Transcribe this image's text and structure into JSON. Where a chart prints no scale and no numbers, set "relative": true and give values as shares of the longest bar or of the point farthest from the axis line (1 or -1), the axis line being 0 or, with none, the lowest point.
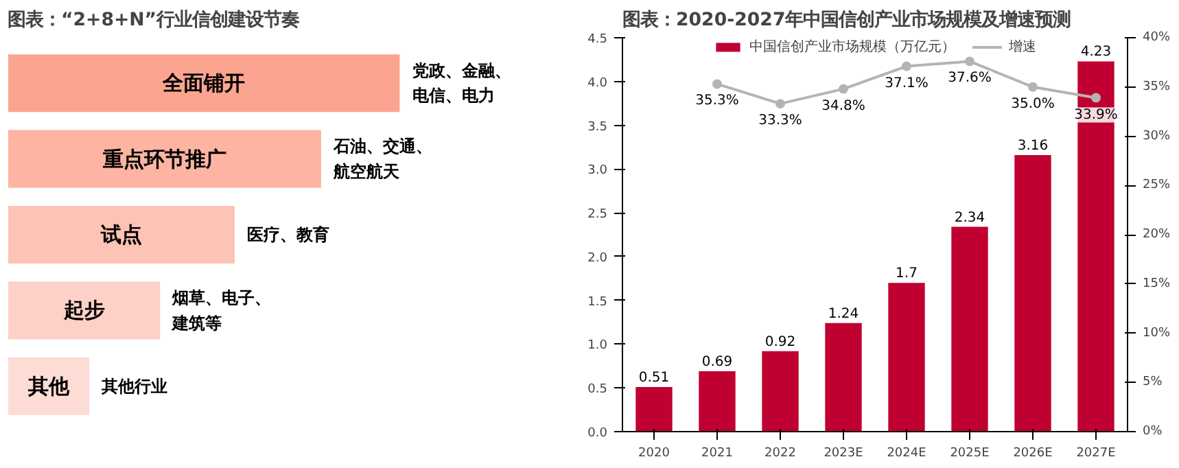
{
  "chart_data": [
    {
      "type": "bar",
      "orientation": "horizontal",
      "relative": true,
      "title": "图表：“2+8+N”行业信创建设节奏",
      "categories": [
        "全面铺开",
        "重点环节推广",
        "试点",
        "起步",
        "其他"
      ],
      "values": [
        1,
        0.8,
        0.58,
        0.39,
        0.21
      ],
      "colors": [
        "#fba590",
        "#fdb4a2",
        "#fdc3b5",
        "#fdd1c7",
        "#fddcd5"
      ],
      "annotations": [
        {
          "text": "党政、金融、电信、电力",
          "x": 1,
          "y": "全面铺开"
        },
        {
          "text": "石油、交通、航空航天",
          "x": 0.8,
          "y": "重点环节推广"
        },
        {
          "text": "医疗、教育",
          "x": 0.58,
          "y": "试点"
        },
        {
          "text": "烟草、电子、建筑等",
          "x": 0.39,
          "y": "起步"
        },
        {
          "text": "其他行业",
          "x": 0.21,
          "y": "其他"
        }
      ],
      "grid": false
    },
    {
      "type": "bar",
      "title": "图表：2020-2027年中国信创产业市场规模及增速预测",
      "categories": [
        "2020",
        "2021",
        "2022",
        "2023E",
        "2024E",
        "2025E",
        "2026E",
        "2027E"
      ],
      "series": [
        {
          "name": "中国信创产业市场规模（万亿元）",
          "color": "#c00030",
          "values": [
            0.51,
            0.69,
            0.92,
            1.24,
            1.7,
            2.34,
            3.16,
            4.23
          ],
          "data_labels": true
        },
        {
          "name": "增速",
          "type": "line",
          "axis": "y2",
          "color": "#b4b4b4",
          "marker": "circle",
          "values": [
            null,
            35.3,
            33.3,
            34.8,
            37.1,
            37.6,
            35.0,
            33.9
          ],
          "value_labels": [
            null,
            "35.3%",
            "33.3%",
            "34.8%",
            "37.1%",
            "37.6%",
            "35.0%",
            "33.9%"
          ]
        }
      ],
      "ylim": [
        0,
        4.5
      ],
      "yticks": [
        {
          "value": 0,
          "label": "0.0"
        },
        0.5,
        {
          "value": 1,
          "label": "1.0"
        },
        1.5,
        {
          "value": 2,
          "label": "2.0"
        },
        2.5,
        {
          "value": 3,
          "label": "3.0"
        },
        3.5,
        {
          "value": 4,
          "label": "4.0"
        },
        4.5
      ],
      "y2lim": [
        0,
        40
      ],
      "y2ticks": [
        {
          "value": 0,
          "label": "0%"
        },
        {
          "value": 5,
          "label": "5%"
        },
        {
          "value": 10,
          "label": "10%"
        },
        {
          "value": 15,
          "label": "15%"
        },
        {
          "value": 20,
          "label": "20%"
        },
        {
          "value": 25,
          "label": "25%"
        },
        {
          "value": 30,
          "label": "30%"
        },
        {
          "value": 35,
          "label": "35%"
        },
        {
          "value": 40,
          "label": "40%"
        }
      ],
      "grid": false,
      "legend": "top"
    }
  ]
}
